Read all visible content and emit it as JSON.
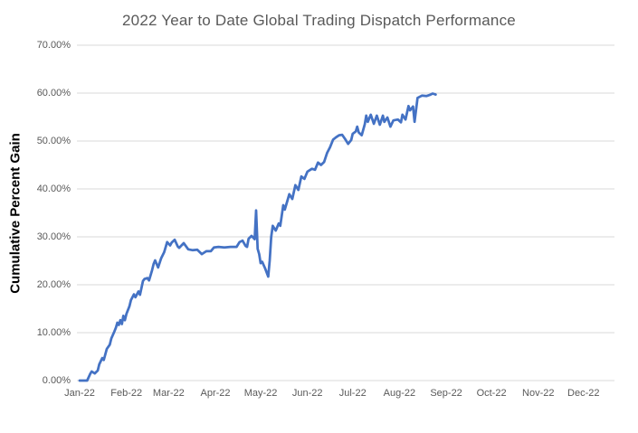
{
  "chart_data": {
    "type": "line",
    "title": "2022 Year to Date Global Trading Dispatch Performance",
    "xlabel": "",
    "ylabel": "Cumulative Percent Gain",
    "legend": "none",
    "grid": "horizontal",
    "background": "#ffffff",
    "line_color": "#4472C4",
    "gridline_color": "#D9D9D9",
    "tick_text_color": "#595959",
    "title_color": "#595959",
    "axis_title_color": "#000000",
    "ylim": [
      0,
      70
    ],
    "x_domain_days": [
      0,
      356
    ],
    "x_unit": "day of year 2022 (0 = Jan 1), series ends ~Aug 25",
    "y_ticks": [
      {
        "value": 0,
        "label": "0.00%"
      },
      {
        "value": 10,
        "label": "10.00%"
      },
      {
        "value": 20,
        "label": "20.00%"
      },
      {
        "value": 30,
        "label": "30.00%"
      },
      {
        "value": 40,
        "label": "40.00%"
      },
      {
        "value": 50,
        "label": "50.00%"
      },
      {
        "value": 60,
        "label": "60.00%"
      },
      {
        "value": 70,
        "label": "70.00%"
      }
    ],
    "x_ticks": [
      {
        "day": 0,
        "label": "Jan-22"
      },
      {
        "day": 31,
        "label": "Feb-22"
      },
      {
        "day": 59,
        "label": "Mar-22"
      },
      {
        "day": 90,
        "label": "Apr-22"
      },
      {
        "day": 120,
        "label": "May-22"
      },
      {
        "day": 151,
        "label": "Jun-22"
      },
      {
        "day": 181,
        "label": "Jul-22"
      },
      {
        "day": 212,
        "label": "Aug-22"
      },
      {
        "day": 243,
        "label": "Sep-22"
      },
      {
        "day": 273,
        "label": "Oct-22"
      },
      {
        "day": 304,
        "label": "Nov-22"
      },
      {
        "day": 334,
        "label": "Dec-22"
      }
    ],
    "series": [
      {
        "name": "Cumulative Percent Gain",
        "points": [
          [
            0,
            0.0
          ],
          [
            5,
            0.0
          ],
          [
            7,
            1.4
          ],
          [
            8,
            1.9
          ],
          [
            10,
            1.5
          ],
          [
            12,
            2.1
          ],
          [
            13,
            3.4
          ],
          [
            15,
            4.7
          ],
          [
            16,
            4.3
          ],
          [
            18,
            6.6
          ],
          [
            20,
            7.5
          ],
          [
            21,
            8.8
          ],
          [
            23,
            10.2
          ],
          [
            24,
            11.0
          ],
          [
            25,
            12.1
          ],
          [
            26,
            11.6
          ],
          [
            27,
            12.6
          ],
          [
            28,
            11.8
          ],
          [
            29,
            13.5
          ],
          [
            30,
            12.6
          ],
          [
            31,
            13.9
          ],
          [
            33,
            15.5
          ],
          [
            34,
            16.8
          ],
          [
            36,
            18.0
          ],
          [
            37,
            17.4
          ],
          [
            39,
            18.6
          ],
          [
            40,
            17.9
          ],
          [
            42,
            20.8
          ],
          [
            43,
            21.2
          ],
          [
            45,
            21.4
          ],
          [
            46,
            20.9
          ],
          [
            48,
            23.0
          ],
          [
            49,
            24.3
          ],
          [
            50,
            25.1
          ],
          [
            52,
            23.6
          ],
          [
            54,
            25.5
          ],
          [
            56,
            26.8
          ],
          [
            58,
            28.9
          ],
          [
            60,
            28.2
          ],
          [
            61,
            28.8
          ],
          [
            63,
            29.4
          ],
          [
            65,
            28.0
          ],
          [
            66,
            27.7
          ],
          [
            69,
            28.7
          ],
          [
            72,
            27.4
          ],
          [
            75,
            27.2
          ],
          [
            78,
            27.3
          ],
          [
            81,
            26.4
          ],
          [
            84,
            27.0
          ],
          [
            87,
            27.0
          ],
          [
            89,
            27.8
          ],
          [
            92,
            27.9
          ],
          [
            96,
            27.8
          ],
          [
            100,
            27.9
          ],
          [
            104,
            27.9
          ],
          [
            106,
            28.9
          ],
          [
            108,
            29.2
          ],
          [
            110,
            28.1
          ],
          [
            111,
            27.9
          ],
          [
            112,
            29.6
          ],
          [
            114,
            30.2
          ],
          [
            116,
            29.5
          ],
          [
            117,
            35.5
          ],
          [
            118,
            27.5
          ],
          [
            119,
            26.4
          ],
          [
            120,
            24.5
          ],
          [
            121,
            24.8
          ],
          [
            123,
            23.4
          ],
          [
            125,
            21.7
          ],
          [
            126,
            25.0
          ],
          [
            127,
            30.0
          ],
          [
            128,
            32.3
          ],
          [
            130,
            31.3
          ],
          [
            132,
            32.8
          ],
          [
            133,
            32.3
          ],
          [
            135,
            36.6
          ],
          [
            136,
            35.7
          ],
          [
            139,
            38.9
          ],
          [
            141,
            37.9
          ],
          [
            143,
            40.8
          ],
          [
            145,
            39.8
          ],
          [
            147,
            42.6
          ],
          [
            149,
            42.1
          ],
          [
            151,
            43.6
          ],
          [
            154,
            44.2
          ],
          [
            156,
            44.0
          ],
          [
            158,
            45.5
          ],
          [
            160,
            45.0
          ],
          [
            162,
            45.6
          ],
          [
            164,
            47.5
          ],
          [
            166,
            48.7
          ],
          [
            168,
            50.3
          ],
          [
            170,
            50.8
          ],
          [
            172,
            51.2
          ],
          [
            174,
            51.3
          ],
          [
            176,
            50.4
          ],
          [
            178,
            49.4
          ],
          [
            180,
            50.2
          ],
          [
            181,
            51.5
          ],
          [
            183,
            52.0
          ],
          [
            184,
            53.0
          ],
          [
            185,
            51.8
          ],
          [
            187,
            51.2
          ],
          [
            189,
            53.5
          ],
          [
            190,
            55.3
          ],
          [
            191,
            54.0
          ],
          [
            193,
            55.5
          ],
          [
            195,
            53.6
          ],
          [
            197,
            55.3
          ],
          [
            199,
            53.4
          ],
          [
            201,
            55.3
          ],
          [
            202,
            54.0
          ],
          [
            204,
            54.9
          ],
          [
            206,
            53.0
          ],
          [
            208,
            54.3
          ],
          [
            211,
            54.5
          ],
          [
            213,
            53.9
          ],
          [
            214,
            55.5
          ],
          [
            216,
            54.5
          ],
          [
            218,
            57.3
          ],
          [
            219,
            56.4
          ],
          [
            221,
            57.2
          ],
          [
            222,
            54.0
          ],
          [
            224,
            59.0
          ],
          [
            227,
            59.5
          ],
          [
            230,
            59.4
          ],
          [
            232,
            59.6
          ],
          [
            234,
            59.9
          ],
          [
            236,
            59.7
          ]
        ]
      }
    ]
  }
}
